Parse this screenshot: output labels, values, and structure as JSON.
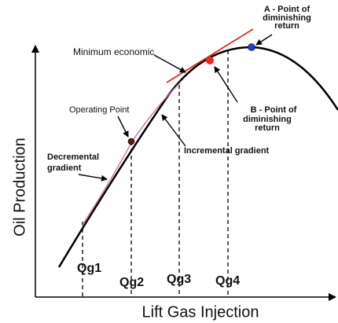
{
  "axes": {
    "y_label": "Oil Production",
    "x_label": "Lift Gas Injection"
  },
  "annotations": {
    "point_a": [
      "A - Point of",
      "diminishing",
      "return"
    ],
    "minimum_economic": "Minimum economic",
    "point_b": [
      "B - Point of",
      "diminishing",
      "return"
    ],
    "operating_point": "Operating Point",
    "incremental_gradient": "Incremental gradient",
    "decremental_gradient": [
      "Decremental",
      "gradient"
    ]
  },
  "gas_rates": [
    "Qg1",
    "Qg2",
    "Qg3",
    "Qg4"
  ]
}
